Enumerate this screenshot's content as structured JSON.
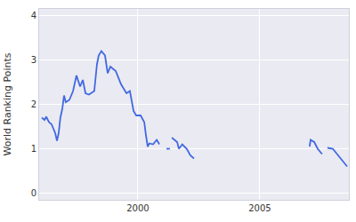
{
  "chart_data": {
    "type": "line",
    "y_label": "World Ranking Points",
    "color": "#4169e1",
    "grid": true,
    "xlim": [
      1995.95,
      2008.65
    ],
    "xticks": [
      2000,
      2005
    ],
    "ylim": [
      -0.15,
      4.15
    ],
    "yticks": [
      0,
      1,
      2,
      3,
      4
    ],
    "x": [
      1996.06,
      1996.17,
      1996.24,
      1996.35,
      1996.46,
      1996.61,
      1996.68,
      1996.75,
      1996.82,
      1996.9,
      1996.97,
      1997.04,
      1997.19,
      1997.34,
      1997.48,
      1997.63,
      1997.74,
      1997.85,
      1997.99,
      1998.21,
      1998.32,
      1998.39,
      1998.5,
      1998.65,
      1998.76,
      1998.87,
      1999.09,
      1999.31,
      1999.53,
      1999.67,
      1999.82,
      1999.93,
      2000.11,
      2000.26,
      2000.33,
      2000.4,
      2000.47,
      2000.62,
      2000.77,
      2000.88,
      2001.02,
      2001.17,
      2001.31,
      2001.35,
      2001.39,
      2001.61,
      2001.68,
      2001.82,
      2002.0,
      2002.15,
      2002.3,
      2004.5,
      2007.04,
      2007.08,
      2007.23,
      2007.37,
      2007.55,
      2007.66,
      2007.77,
      2007.99,
      2008.21,
      2008.58
    ],
    "values": [
      1.7,
      1.65,
      1.72,
      1.6,
      1.55,
      1.35,
      1.18,
      1.35,
      1.7,
      1.9,
      2.2,
      2.05,
      2.1,
      2.3,
      2.65,
      2.4,
      2.55,
      2.25,
      2.22,
      2.3,
      2.9,
      3.1,
      3.2,
      3.1,
      2.7,
      2.85,
      2.75,
      2.45,
      2.25,
      2.3,
      1.85,
      1.75,
      1.75,
      1.6,
      1.3,
      1.05,
      1.12,
      1.1,
      1.2,
      1.1,
      null,
      1.0,
      1.0,
      null,
      1.25,
      1.15,
      1.0,
      1.1,
      1.0,
      0.85,
      0.78,
      null,
      1.05,
      1.2,
      1.15,
      1.0,
      0.88,
      null,
      1.02,
      1.0,
      0.85,
      0.6
    ]
  }
}
